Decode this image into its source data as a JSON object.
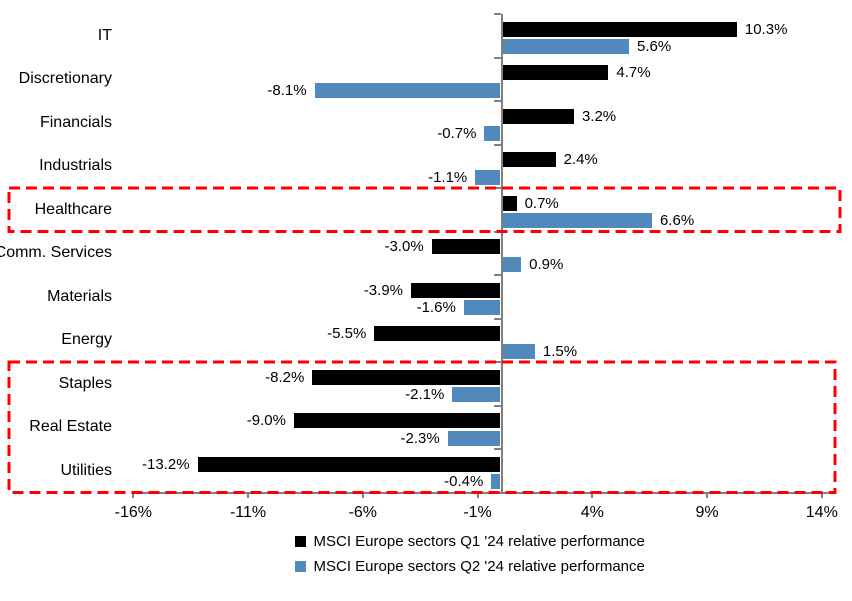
{
  "chart_data": {
    "type": "bar",
    "orientation": "horizontal",
    "title": "",
    "xlabel": "",
    "ylabel": "",
    "gridlines": false,
    "legend_position": "bottom-center",
    "axis_color": "#808080",
    "categories": [
      "IT",
      "Discretionary",
      "Financials",
      "Industrials",
      "Healthcare",
      "Comm. Services",
      "Materials",
      "Energy",
      "Staples",
      "Real Estate",
      "Utilities"
    ],
    "series": [
      {
        "name": "MSCI Europe sectors Q1 '24 relative performance",
        "color": "#000000",
        "values": [
          10.3,
          4.7,
          3.2,
          2.4,
          0.7,
          -3.0,
          -3.9,
          -5.5,
          -8.2,
          -9.0,
          -13.2
        ],
        "labels": [
          "10.3%",
          "4.7%",
          "3.2%",
          "2.4%",
          "0.7%",
          "-3.0%",
          "-3.9%",
          "-5.5%",
          "-8.2%",
          "-9.0%",
          "-13.2%"
        ]
      },
      {
        "name": "MSCI Europe sectors Q2 '24 relative performance",
        "color": "#5289BD",
        "values": [
          5.6,
          -8.1,
          -0.7,
          -1.1,
          6.6,
          0.9,
          -1.6,
          1.5,
          -2.1,
          -2.3,
          -0.4
        ],
        "labels": [
          "5.6%",
          "-8.1%",
          "-0.7%",
          "-1.1%",
          "6.6%",
          "0.9%",
          "-1.6%",
          "1.5%",
          "-2.1%",
          "-2.3%",
          "-0.4%"
        ]
      }
    ],
    "x_axis": {
      "tick_labels": [
        "-16%",
        "-11%",
        "-6%",
        "-1%",
        "4%",
        "9%",
        "14%"
      ],
      "tick_values": [
        -16,
        -11,
        -6,
        -1,
        4,
        9,
        14
      ],
      "range": [
        -16.8,
        15.1
      ]
    },
    "highlights": [
      {
        "type": "dashed-box",
        "color": "#FF0000",
        "categories": [
          "Healthcare"
        ]
      },
      {
        "type": "dashed-box",
        "color": "#FF0000",
        "categories": [
          "Staples",
          "Real Estate",
          "Utilities"
        ]
      }
    ]
  }
}
